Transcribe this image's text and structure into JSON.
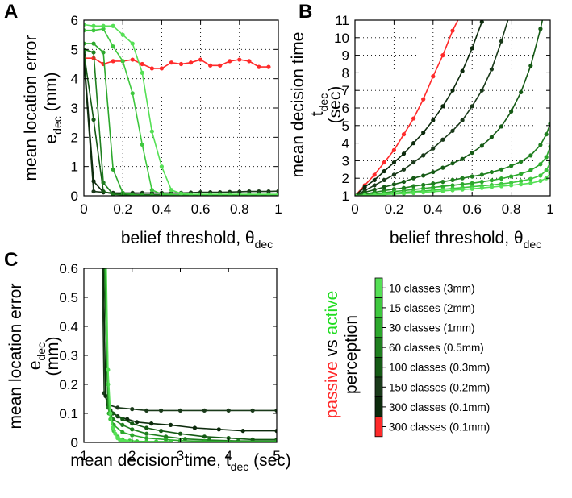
{
  "chart_data": [
    {
      "panel": "A",
      "type": "line",
      "xlabel": "belief threshold, θ",
      "xlabel_sub": "dec",
      "ylabel": "mean location error",
      "ylabel2": "e",
      "ylabel2_sub": "dec",
      "ylabel2_after": " (mm)",
      "xlim": [
        0,
        1
      ],
      "ylim": [
        0,
        6
      ],
      "xticks": [
        0,
        0.2,
        0.4,
        0.6,
        0.8,
        1
      ],
      "yticks": [
        0,
        1,
        2,
        3,
        4,
        5,
        6
      ],
      "grid": "dotted",
      "series": [
        {
          "color": "#ff2a2a",
          "x": [
            0,
            0.05,
            0.1,
            0.15,
            0.2,
            0.25,
            0.3,
            0.35,
            0.4,
            0.45,
            0.5,
            0.55,
            0.6,
            0.65,
            0.7,
            0.75,
            0.8,
            0.85,
            0.9,
            0.95
          ],
          "y": [
            4.7,
            4.7,
            4.5,
            4.6,
            4.6,
            4.65,
            4.5,
            4.35,
            4.35,
            4.55,
            4.5,
            4.55,
            4.65,
            4.45,
            4.45,
            4.6,
            4.65,
            4.6,
            4.4,
            4.4
          ]
        },
        {
          "color": "#1a3a1a",
          "x": [
            0,
            0.05,
            0.1,
            0.15,
            0.2,
            0.25,
            0.3,
            0.35,
            0.4,
            0.45,
            0.5,
            0.55,
            0.6,
            0.65,
            0.7,
            0.75,
            0.8,
            0.85,
            0.9,
            0.95,
            1
          ],
          "y": [
            4.6,
            0.15,
            0.12,
            0.1,
            0.1,
            0.1,
            0.1,
            0.1,
            0.1,
            0.1,
            0.1,
            0.11,
            0.12,
            0.12,
            0.12,
            0.13,
            0.14,
            0.15,
            0.15,
            0.15,
            0.16
          ]
        },
        {
          "color": "#0c2a0c",
          "x": [
            0,
            0.05,
            0.1,
            0.15,
            0.2,
            0.25,
            0.3,
            0.35,
            0.4,
            0.45,
            0.5,
            0.55,
            0.6,
            0.65,
            0.7,
            0.75,
            0.8,
            0.85,
            0.9,
            0.95,
            1
          ],
          "y": [
            4.8,
            0.5,
            0.12,
            0.08,
            0.06,
            0.05,
            0.04,
            0.04,
            0.04,
            0.04,
            0.04,
            0.04,
            0.04,
            0.04,
            0.04,
            0.04,
            0.04,
            0.04,
            0.04,
            0.03,
            0.02
          ]
        },
        {
          "color": "#155a15",
          "x": [
            0,
            0.05,
            0.1,
            0.15,
            0.2,
            0.25,
            0.3,
            0.35,
            0.4,
            0.45,
            0.5,
            0.55,
            0.6,
            0.65,
            0.7,
            0.75,
            0.8,
            0.85,
            0.9,
            0.95,
            1
          ],
          "y": [
            4.9,
            2.6,
            0.15,
            0.06,
            0.04,
            0.03,
            0.03,
            0.03,
            0.03,
            0.03,
            0.03,
            0.03,
            0.03,
            0.03,
            0.03,
            0.03,
            0.03,
            0.03,
            0.03,
            0.03,
            0.02
          ]
        },
        {
          "color": "#1f7f1f",
          "x": [
            0,
            0.05,
            0.1,
            0.15,
            0.2,
            0.25,
            0.3,
            0.35,
            0.4,
            0.45,
            0.5,
            0.55,
            0.6,
            0.65,
            0.7,
            0.75,
            0.8,
            0.85,
            0.9,
            0.95,
            1
          ],
          "y": [
            5.0,
            4.9,
            0.45,
            0.05,
            0.03,
            0.02,
            0.02,
            0.02,
            0.02,
            0.02,
            0.02,
            0.02,
            0.02,
            0.02,
            0.02,
            0.02,
            0.02,
            0.02,
            0.02,
            0.02,
            0.02
          ]
        },
        {
          "color": "#2ca82c",
          "x": [
            0,
            0.05,
            0.1,
            0.15,
            0.2,
            0.25,
            0.3,
            0.35,
            0.4,
            0.45,
            0.5,
            0.55,
            0.6,
            0.65,
            0.7,
            0.75,
            0.8,
            0.85,
            0.9,
            0.95,
            1
          ],
          "y": [
            5.2,
            5.2,
            4.9,
            0.9,
            0.1,
            0.04,
            0.02,
            0.02,
            0.02,
            0.02,
            0.02,
            0.02,
            0.02,
            0.02,
            0.02,
            0.02,
            0.02,
            0.02,
            0.02,
            0.02,
            0.02
          ]
        },
        {
          "color": "#3ec83e",
          "x": [
            0,
            0.05,
            0.1,
            0.15,
            0.2,
            0.25,
            0.3,
            0.35,
            0.4,
            0.45,
            0.5,
            0.55,
            0.6,
            0.65,
            0.7,
            0.75,
            0.8,
            0.85,
            0.9,
            0.95,
            1
          ],
          "y": [
            5.65,
            5.65,
            5.7,
            5.1,
            4.6,
            3.5,
            1.75,
            0.2,
            0.06,
            0.04,
            0.03,
            0.03,
            0.03,
            0.03,
            0.03,
            0.03,
            0.03,
            0.03,
            0.03,
            0.03,
            0.03
          ]
        },
        {
          "color": "#55e055",
          "x": [
            0,
            0.05,
            0.1,
            0.15,
            0.2,
            0.25,
            0.3,
            0.35,
            0.4,
            0.45,
            0.5,
            0.55,
            0.6,
            0.65,
            0.7,
            0.75,
            0.8,
            0.85,
            0.9,
            0.95,
            1
          ],
          "y": [
            5.85,
            5.8,
            5.8,
            5.8,
            5.5,
            5.2,
            4.2,
            2.2,
            1.0,
            0.2,
            0.08,
            0.05,
            0.05,
            0.05,
            0.05,
            0.05,
            0.05,
            0.05,
            0.05,
            0.05,
            0.05
          ]
        }
      ]
    },
    {
      "panel": "B",
      "type": "line",
      "xlabel": "belief threshold, θ",
      "xlabel_sub": "dec",
      "ylabel": "mean decision time",
      "ylabel2": "t",
      "ylabel2_sub": "dec",
      "ylabel3": "(sec)",
      "xlim": [
        0,
        1
      ],
      "ylim": [
        1,
        11
      ],
      "xticks": [
        0,
        0.2,
        0.4,
        0.6,
        0.8,
        1
      ],
      "yticks": [
        1,
        2,
        3,
        4,
        5,
        6,
        7,
        8,
        9,
        10,
        11
      ],
      "grid": "dotted",
      "series": [
        {
          "color": "#ff2a2a",
          "x": [
            0,
            0.05,
            0.1,
            0.15,
            0.2,
            0.25,
            0.3,
            0.35,
            0.4,
            0.45,
            0.5,
            0.55
          ],
          "y": [
            1,
            1.6,
            2.2,
            2.9,
            3.6,
            4.5,
            5.4,
            6.5,
            7.8,
            9.0,
            10.4,
            11.5
          ]
        },
        {
          "color": "#0c2a0c",
          "x": [
            0,
            0.05,
            0.1,
            0.15,
            0.2,
            0.25,
            0.3,
            0.35,
            0.4,
            0.45,
            0.5,
            0.55,
            0.6,
            0.65,
            0.7
          ],
          "y": [
            1,
            1.5,
            1.9,
            2.4,
            2.9,
            3.4,
            4.0,
            4.6,
            5.3,
            6.1,
            7.0,
            8.1,
            9.4,
            10.9,
            12.5
          ]
        },
        {
          "color": "#1a3a1a",
          "x": [
            0,
            0.05,
            0.1,
            0.15,
            0.2,
            0.25,
            0.3,
            0.35,
            0.4,
            0.45,
            0.5,
            0.55,
            0.6,
            0.65,
            0.7,
            0.75,
            0.8
          ],
          "y": [
            1,
            1.3,
            1.6,
            1.9,
            2.2,
            2.5,
            2.9,
            3.3,
            3.7,
            4.2,
            4.7,
            5.3,
            6.1,
            7.0,
            8.2,
            9.8,
            11.6
          ]
        },
        {
          "color": "#155a15",
          "x": [
            0,
            0.05,
            0.1,
            0.15,
            0.2,
            0.25,
            0.3,
            0.35,
            0.4,
            0.45,
            0.5,
            0.55,
            0.6,
            0.65,
            0.7,
            0.75,
            0.8,
            0.85,
            0.9,
            0.95,
            1
          ],
          "y": [
            1,
            1.2,
            1.35,
            1.5,
            1.65,
            1.8,
            2.0,
            2.15,
            2.35,
            2.6,
            2.85,
            3.1,
            3.45,
            3.85,
            4.35,
            4.95,
            5.8,
            6.9,
            8.4,
            10.5,
            13.0
          ]
        },
        {
          "color": "#1f7f1f",
          "x": [
            0,
            0.05,
            0.1,
            0.15,
            0.2,
            0.25,
            0.3,
            0.35,
            0.4,
            0.45,
            0.5,
            0.55,
            0.6,
            0.65,
            0.7,
            0.75,
            0.8,
            0.85,
            0.9,
            0.95,
            0.98,
            1
          ],
          "y": [
            1,
            1.1,
            1.2,
            1.3,
            1.38,
            1.45,
            1.55,
            1.62,
            1.7,
            1.8,
            1.9,
            2.0,
            2.1,
            2.2,
            2.35,
            2.5,
            2.7,
            2.95,
            3.3,
            3.9,
            4.5,
            5.1
          ]
        },
        {
          "color": "#2ca82c",
          "x": [
            0,
            0.05,
            0.1,
            0.15,
            0.2,
            0.25,
            0.3,
            0.35,
            0.4,
            0.45,
            0.5,
            0.55,
            0.6,
            0.65,
            0.7,
            0.75,
            0.8,
            0.85,
            0.9,
            0.95,
            0.98,
            1
          ],
          "y": [
            1,
            1.05,
            1.12,
            1.18,
            1.25,
            1.3,
            1.36,
            1.42,
            1.48,
            1.54,
            1.6,
            1.66,
            1.72,
            1.8,
            1.88,
            1.98,
            2.1,
            2.25,
            2.45,
            2.8,
            3.2,
            3.8
          ]
        },
        {
          "color": "#3ec83e",
          "x": [
            0,
            0.05,
            0.1,
            0.15,
            0.2,
            0.25,
            0.3,
            0.35,
            0.4,
            0.45,
            0.5,
            0.55,
            0.6,
            0.65,
            0.7,
            0.75,
            0.8,
            0.85,
            0.9,
            0.95,
            0.98,
            1
          ],
          "y": [
            1,
            1.03,
            1.07,
            1.11,
            1.15,
            1.2,
            1.24,
            1.28,
            1.32,
            1.37,
            1.42,
            1.47,
            1.52,
            1.57,
            1.62,
            1.68,
            1.75,
            1.84,
            1.96,
            2.15,
            2.45,
            2.9
          ]
        },
        {
          "color": "#55e055",
          "x": [
            0,
            0.05,
            0.1,
            0.15,
            0.2,
            0.25,
            0.3,
            0.35,
            0.4,
            0.45,
            0.5,
            0.55,
            0.6,
            0.65,
            0.7,
            0.75,
            0.8,
            0.85,
            0.9,
            0.95,
            0.98,
            1
          ],
          "y": [
            1,
            1.02,
            1.04,
            1.07,
            1.1,
            1.13,
            1.16,
            1.2,
            1.24,
            1.28,
            1.32,
            1.36,
            1.4,
            1.45,
            1.5,
            1.55,
            1.6,
            1.66,
            1.72,
            1.85,
            2.0,
            2.3
          ]
        }
      ]
    },
    {
      "panel": "C",
      "type": "line",
      "xlabel": "mean decision time, t",
      "xlabel_sub": "dec",
      "xlabel_after": " (sec)",
      "ylabel": "mean location error",
      "ylabel2": "e",
      "ylabel2_sub": "dec",
      "ylabel3": "(mm)",
      "xlim": [
        1,
        5
      ],
      "ylim": [
        0,
        0.6
      ],
      "xticks": [
        1,
        2,
        3,
        4,
        5
      ],
      "yticks": [
        0,
        0.1,
        0.2,
        0.3,
        0.4,
        0.5,
        0.6
      ],
      "grid": "none",
      "series": [
        {
          "color": "#1a3a1a",
          "x": [
            1.38,
            1.42,
            1.5,
            1.7,
            2.0,
            2.3,
            2.6,
            3.0,
            3.5,
            4.0,
            4.5,
            5.0
          ],
          "y": [
            0.65,
            0.17,
            0.13,
            0.12,
            0.115,
            0.11,
            0.11,
            0.11,
            0.11,
            0.11,
            0.11,
            0.11
          ]
        },
        {
          "color": "#0c2a0c",
          "x": [
            1.4,
            1.45,
            1.55,
            1.7,
            1.9,
            2.1,
            2.4,
            2.8,
            3.3,
            3.8,
            4.3,
            5.0
          ],
          "y": [
            0.65,
            0.16,
            0.11,
            0.09,
            0.08,
            0.07,
            0.065,
            0.06,
            0.05,
            0.045,
            0.04,
            0.04
          ]
        },
        {
          "color": "#155a15",
          "x": [
            1.42,
            1.5,
            1.6,
            1.8,
            2.0,
            2.3,
            2.6,
            3.0,
            3.5,
            4.0,
            4.5,
            5.0
          ],
          "y": [
            0.65,
            0.14,
            0.1,
            0.08,
            0.065,
            0.05,
            0.04,
            0.03,
            0.02,
            0.015,
            0.01,
            0.01
          ]
        },
        {
          "color": "#1f7f1f",
          "x": [
            1.42,
            1.5,
            1.6,
            1.8,
            2.0,
            2.3,
            2.7,
            3.1,
            3.6,
            4.2,
            5.0
          ],
          "y": [
            0.65,
            0.12,
            0.08,
            0.06,
            0.045,
            0.03,
            0.02,
            0.012,
            0.008,
            0.005,
            0.005
          ]
        },
        {
          "color": "#2ca82c",
          "x": [
            1.44,
            1.52,
            1.62,
            1.8,
            2.0,
            2.3,
            2.7,
            3.0,
            3.5,
            4.0,
            5.0
          ],
          "y": [
            0.65,
            0.1,
            0.06,
            0.035,
            0.025,
            0.015,
            0.01,
            0.006,
            0.004,
            0.003,
            0.003
          ]
        },
        {
          "color": "#3ec83e",
          "x": [
            1.45,
            1.5,
            1.55,
            1.62,
            1.7,
            1.8,
            1.95,
            2.1,
            2.3,
            2.5,
            2.8
          ],
          "y": [
            0.65,
            0.2,
            0.08,
            0.04,
            0.02,
            0.01,
            0.006,
            0.004,
            0.003,
            0.003,
            0.003
          ]
        },
        {
          "color": "#55e055",
          "x": [
            1.46,
            1.5,
            1.55,
            1.6,
            1.65,
            1.7,
            1.75,
            1.8,
            1.85,
            1.9,
            2.0
          ],
          "y": [
            0.65,
            0.25,
            0.1,
            0.05,
            0.03,
            0.015,
            0.008,
            0.005,
            0.004,
            0.003,
            0.003
          ]
        }
      ]
    }
  ],
  "colorbar": {
    "entries": [
      {
        "label": "10 classes (3mm)",
        "color": "#55e055"
      },
      {
        "label": "15 classes (2mm)",
        "color": "#3ec83e"
      },
      {
        "label": "30 classes (1mm)",
        "color": "#2ca82c"
      },
      {
        "label": "60 classes (0.5mm)",
        "color": "#1f7f1f"
      },
      {
        "label": "100 classes (0.3mm)",
        "color": "#155a15"
      },
      {
        "label": "150 classes (0.2mm)",
        "color": "#1a3a1a"
      },
      {
        "label": "300 classes (0.1mm)",
        "color": "#0c2a0c"
      },
      {
        "label": "300 classes (0.1mm)",
        "color": "#ff2a2a"
      }
    ],
    "vertical_label": {
      "passive": "passive",
      "vs": " vs ",
      "active": "active",
      "perception": "perception"
    },
    "passive_color": "#ff2a2a",
    "active_color": "#22dd22"
  },
  "panel_letters": {
    "a": "A",
    "b": "B",
    "c": "C"
  }
}
